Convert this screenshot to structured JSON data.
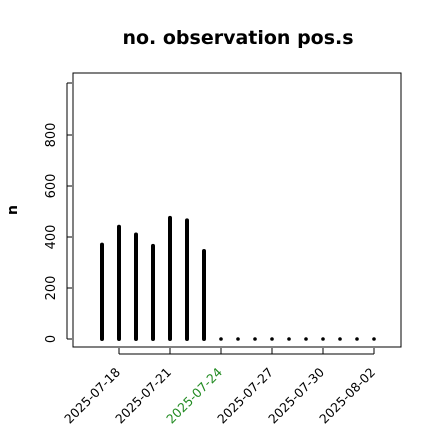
{
  "chart_data": {
    "type": "bar",
    "title": "no. observation pos.s",
    "ylabel": "n",
    "xlabel": "",
    "ylim": [
      0,
      960
    ],
    "yticks": [
      0,
      200,
      400,
      600,
      800
    ],
    "x_tick_dates": [
      "2025-07-18",
      "2025-07-21",
      "2025-07-24",
      "2025-07-27",
      "2025-07-30",
      "2025-08-02"
    ],
    "highlight_date": "2025-07-24",
    "highlight_color": "#228b22",
    "bar_color": "#000000",
    "x": [
      "2025-07-17",
      "2025-07-18",
      "2025-07-19",
      "2025-07-20",
      "2025-07-21",
      "2025-07-22",
      "2025-07-23",
      "2025-07-24",
      "2025-07-25",
      "2025-07-26",
      "2025-07-27",
      "2025-07-28",
      "2025-07-29",
      "2025-07-30",
      "2025-07-31",
      "2025-08-01",
      "2025-08-02"
    ],
    "values": [
      370,
      440,
      410,
      365,
      475,
      465,
      345,
      0,
      0,
      0,
      0,
      0,
      0,
      0,
      0,
      0,
      0
    ]
  }
}
